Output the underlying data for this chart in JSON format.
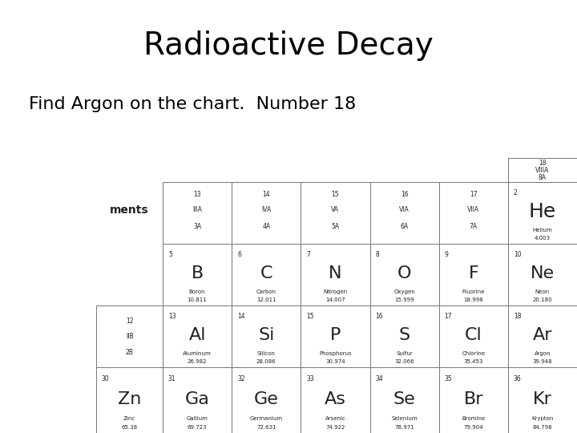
{
  "title": "Radioactive Decay",
  "subtitle": "Find Argon on the chart.  Number 18",
  "title_fontsize": 28,
  "subtitle_fontsize": 16,
  "bg_color": "#ffffff",
  "title_color": "#000000",
  "subtitle_color": "#000000",
  "periodic_elements": {
    "col18_header": {
      "number": "18",
      "group": "VIIIA",
      "group2": "8A"
    },
    "he": {
      "num": "2",
      "symbol": "He",
      "name": "Helium",
      "mass": "4.003"
    },
    "col_headers": [
      {
        "num": "13",
        "grp": "IIIA",
        "grp2": "3A"
      },
      {
        "num": "14",
        "grp": "IVA",
        "grp2": "4A"
      },
      {
        "num": "15",
        "grp": "VA",
        "grp2": "5A"
      },
      {
        "num": "16",
        "grp": "VIA",
        "grp2": "6A"
      },
      {
        "num": "17",
        "grp": "VIIA",
        "grp2": "7A"
      }
    ],
    "row2": [
      {
        "num": "5",
        "symbol": "B",
        "name": "Boron",
        "mass": "10.811"
      },
      {
        "num": "6",
        "symbol": "C",
        "name": "Carbon",
        "mass": "12.011"
      },
      {
        "num": "7",
        "symbol": "N",
        "name": "Nitrogen",
        "mass": "14.007"
      },
      {
        "num": "8",
        "symbol": "O",
        "name": "Oxygen",
        "mass": "15.999"
      },
      {
        "num": "9",
        "symbol": "F",
        "name": "Fluorine",
        "mass": "18.998"
      },
      {
        "num": "10",
        "symbol": "Ne",
        "name": "Neon",
        "mass": "20.180"
      }
    ],
    "row3_label": {
      "num": "12",
      "grp": "IIB",
      "grp2": "2B"
    },
    "row3": [
      {
        "num": "13",
        "symbol": "Al",
        "name": "Aluminum",
        "mass": "26.982"
      },
      {
        "num": "14",
        "symbol": "Si",
        "name": "Silicon",
        "mass": "28.086"
      },
      {
        "num": "15",
        "symbol": "P",
        "name": "Phosphorus",
        "mass": "30.974"
      },
      {
        "num": "16",
        "symbol": "S",
        "name": "Sulfur",
        "mass": "32.066"
      },
      {
        "num": "17",
        "symbol": "Cl",
        "name": "Chlorine",
        "mass": "35.453"
      },
      {
        "num": "18",
        "symbol": "Ar",
        "name": "Argon",
        "mass": "39.948"
      }
    ],
    "row4": [
      {
        "num": "30",
        "symbol": "Zn",
        "name": "Zinc",
        "mass": "65.38"
      },
      {
        "num": "31",
        "symbol": "Ga",
        "name": "Gallium",
        "mass": "69.723"
      },
      {
        "num": "32",
        "symbol": "Ge",
        "name": "Germanium",
        "mass": "72.631"
      },
      {
        "num": "33",
        "symbol": "As",
        "name": "Arsenic",
        "mass": "74.922"
      },
      {
        "num": "34",
        "symbol": "Se",
        "name": "Selenium",
        "mass": "78.971"
      },
      {
        "num": "35",
        "symbol": "Br",
        "name": "Bromine",
        "mass": "79.904"
      },
      {
        "num": "36",
        "symbol": "Kr",
        "name": "Krypton",
        "mass": "84.798"
      }
    ]
  }
}
